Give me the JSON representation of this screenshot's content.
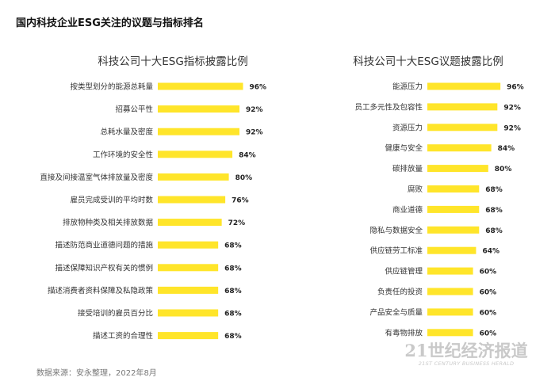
{
  "page_title": "国内科技企业ESG关注的议题与指标排名",
  "source_note": "数据来源：安永整理，2022年8月",
  "watermark": {
    "main": "21世纪经济报道",
    "sub": "21ST CENTURY BUSINESS HERALD"
  },
  "colors": {
    "bar": "#FFE52A",
    "label": "#333333"
  },
  "chart_data": [
    {
      "type": "bar",
      "orientation": "horizontal",
      "title": "科技公司十大ESG指标披露比例",
      "categories": [
        "按类型划分的能源总耗量",
        "招募公平性",
        "总耗水量及密度",
        "工作环境的安全性",
        "直接及间接温室气体排放量及密度",
        "雇员完成受训的平均时数",
        "排放物种类及相关排放数据",
        "描述防范商业道德问题的措施",
        "描述保障知识产权有关的惯例",
        "描述消费者资料保障及私隐政策",
        "接受培训的雇员百分比",
        "描述工资的合理性"
      ],
      "values": [
        96,
        92,
        92,
        84,
        80,
        76,
        72,
        68,
        68,
        68,
        68,
        68
      ],
      "value_labels": [
        "96%",
        "92%",
        "92%",
        "84%",
        "80%",
        "76%",
        "72%",
        "68%",
        "68%",
        "68%",
        "68%",
        "68%"
      ],
      "unit": "%"
    },
    {
      "type": "bar",
      "orientation": "horizontal",
      "title": "科技公司十大ESG议题披露比例",
      "categories": [
        "能源压力",
        "员工多元性及包容性",
        "资源压力",
        "健康与安全",
        "碳排放量",
        "腐败",
        "商业道德",
        "隐私与数据安全",
        "供应链劳工标准",
        "供应链管理",
        "负责任的投资",
        "产品安全与质量",
        "有毒物排放"
      ],
      "values": [
        96,
        92,
        92,
        84,
        80,
        68,
        68,
        68,
        64,
        60,
        60,
        60,
        60
      ],
      "value_labels": [
        "96%",
        "92%",
        "92%",
        "84%",
        "80%",
        "68%",
        "68%",
        "68%",
        "64%",
        "60%",
        "60%",
        "60%",
        "60%"
      ],
      "unit": "%"
    }
  ]
}
